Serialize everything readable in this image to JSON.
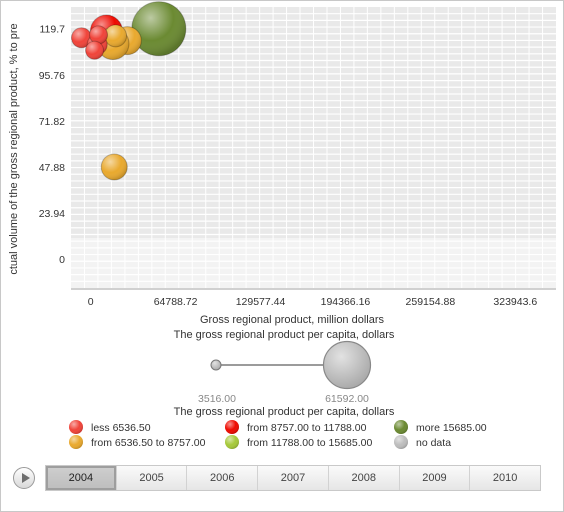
{
  "chart_data": {
    "type": "bubble",
    "xlabel": "Gross regional product, million dollars",
    "ylabel": "ctual volume of the gross regional product, % to pre",
    "x_ticks": [
      "0",
      "64788.72",
      "129577.44",
      "194366.16",
      "259154.88",
      "323943.6"
    ],
    "y_ticks": [
      "0",
      "23.94",
      "47.88",
      "71.82",
      "95.76",
      "119.7"
    ],
    "xlim": [
      -15000,
      355000
    ],
    "ylim": [
      -15,
      131
    ],
    "size_title": "The gross regional product per capita, dollars",
    "size_min_label": "3516.00",
    "size_max_label": "61592.00",
    "color_title": "The gross regional product per capita, dollars",
    "legend": [
      {
        "label": "less 6536.50",
        "color": "#f0443a"
      },
      {
        "label": "from 8757.00 to 11788.00",
        "color": "#ee0a00"
      },
      {
        "label": "more 15685.00",
        "color": "#6b8a32"
      },
      {
        "label": "from 6536.50 to 8757.00",
        "color": "#e9a92e"
      },
      {
        "label": "from 11788.00 to 15685.00",
        "color": "#a6c93a"
      },
      {
        "label": "no data",
        "color": "#bdbdbd"
      }
    ],
    "points": [
      {
        "x": 52000,
        "y": 119.7,
        "r": 27,
        "color": "#6b8a32"
      },
      {
        "x": 12000,
        "y": 118.5,
        "r": 16,
        "color": "#ee0a00"
      },
      {
        "x": 28000,
        "y": 113.5,
        "r": 14,
        "color": "#e9a92e"
      },
      {
        "x": 17000,
        "y": 112.0,
        "r": 16,
        "color": "#e9a92e"
      },
      {
        "x": 19000,
        "y": 116.0,
        "r": 11,
        "color": "#e9a92e"
      },
      {
        "x": -7000,
        "y": 115.0,
        "r": 10,
        "color": "#f0443a"
      },
      {
        "x": 5000,
        "y": 111.5,
        "r": 10,
        "color": "#f0443a"
      },
      {
        "x": 6000,
        "y": 116.5,
        "r": 9,
        "color": "#f0443a"
      },
      {
        "x": 3000,
        "y": 108.5,
        "r": 9,
        "color": "#f0443a"
      },
      {
        "x": 18000,
        "y": 47.88,
        "r": 13,
        "color": "#e9a92e"
      }
    ]
  },
  "timeline": {
    "years": [
      "2004",
      "2005",
      "2006",
      "2007",
      "2008",
      "2009",
      "2010"
    ],
    "active": "2004"
  }
}
